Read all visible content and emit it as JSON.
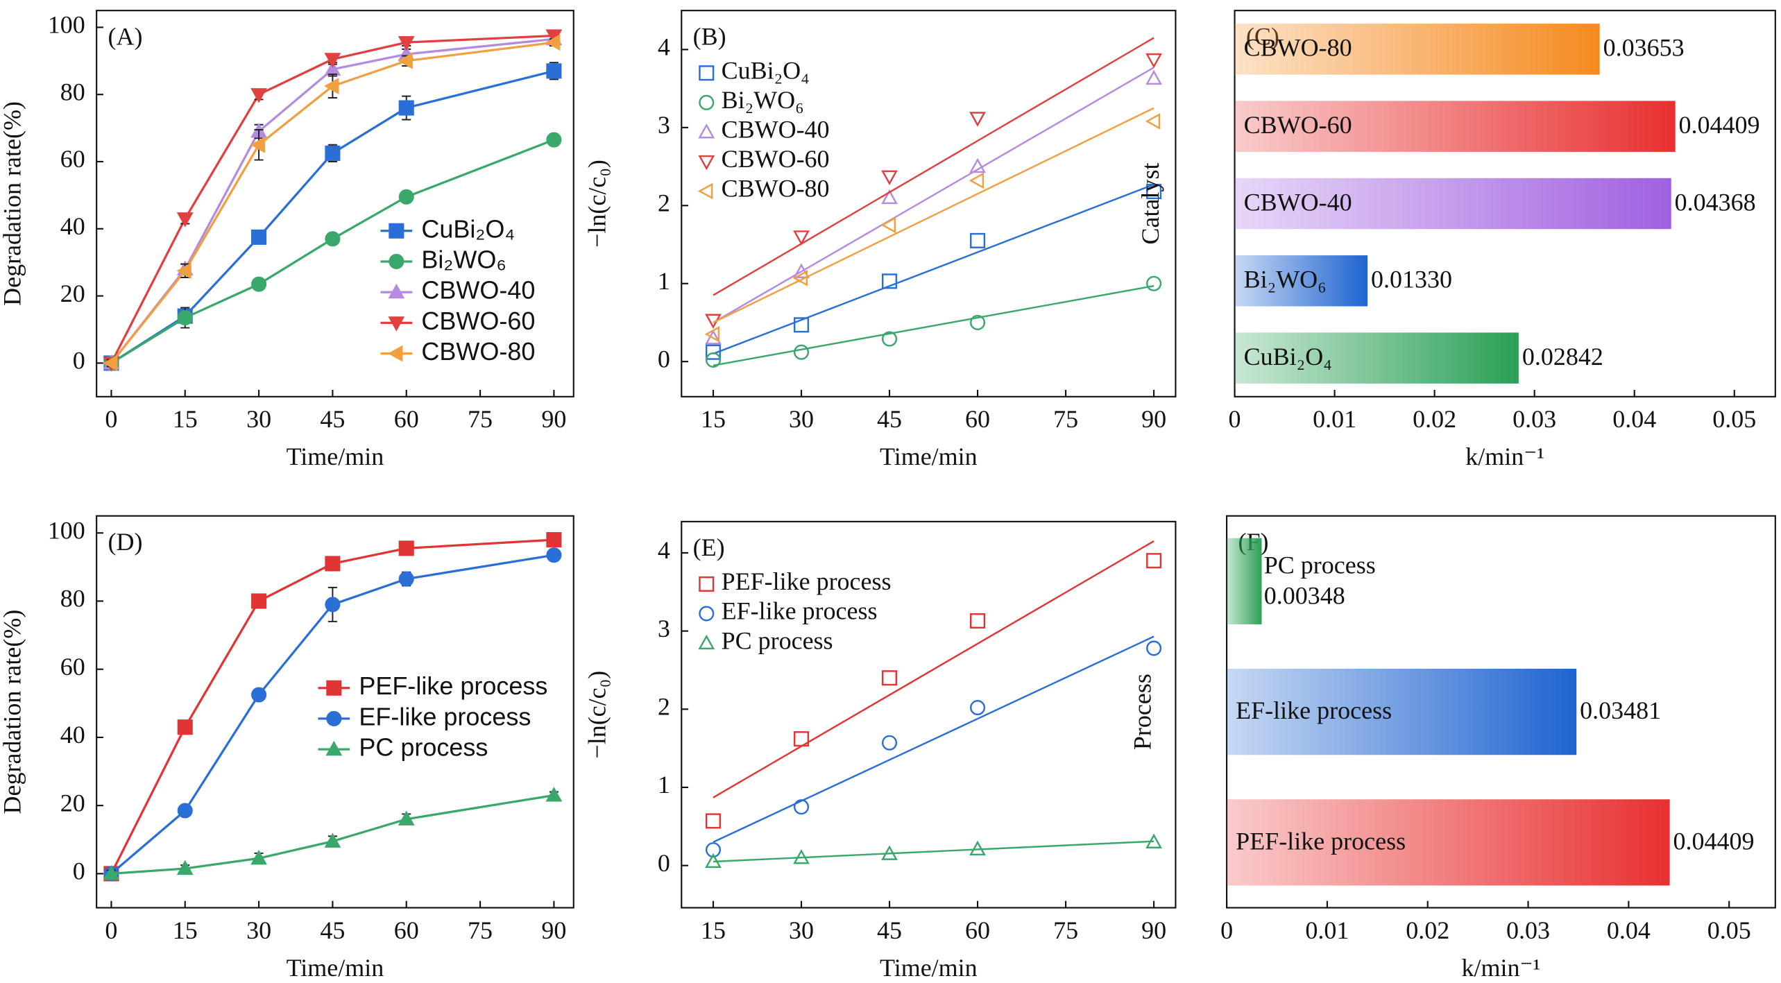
{
  "chart_data": [
    {
      "type": "line",
      "label": "(A)",
      "x_label": "Time/min",
      "y_label": "Degradation rate(%)",
      "legend": "lower right",
      "x": [
        0,
        15,
        30,
        45,
        60,
        90
      ],
      "xlim": [
        -3,
        94
      ],
      "xticks": [
        0,
        15,
        30,
        45,
        60,
        75,
        90
      ],
      "ylim": [
        -10,
        105
      ],
      "yticks": [
        0,
        20,
        40,
        60,
        80,
        100
      ],
      "series": [
        {
          "name": "CuBi₂O₄",
          "color": "#2a6fd6",
          "marker": "square",
          "values": [
            0,
            14,
            37.5,
            62.5,
            76,
            87
          ],
          "errors": [
            1,
            2,
            1.5,
            2.5,
            3.5,
            2.5
          ]
        },
        {
          "name": "Bi₂WO₆",
          "color": "#3aa86b",
          "marker": "circle",
          "values": [
            0,
            13.5,
            23.5,
            37,
            49.5,
            66.5
          ],
          "errors": [
            1,
            3,
            1.5,
            1.5,
            1,
            1
          ]
        },
        {
          "name": "CBWO-40",
          "color": "#b58be0",
          "marker": "up",
          "values": [
            0,
            28,
            69,
            87.5,
            92,
            96.5
          ],
          "errors": [
            1,
            1.5,
            2,
            2,
            1.5,
            1
          ]
        },
        {
          "name": "CBWO-60",
          "color": "#e04040",
          "marker": "down",
          "values": [
            0,
            43,
            80,
            90.5,
            95.5,
            97.5
          ],
          "errors": [
            1,
            1.5,
            1.5,
            1.5,
            1,
            1
          ]
        },
        {
          "name": "CBWO-80",
          "color": "#f0a040",
          "marker": "left",
          "values": [
            0,
            27.5,
            65,
            82.5,
            90,
            95.5
          ],
          "errors": [
            1,
            2,
            4.5,
            3.5,
            1.5,
            1
          ]
        }
      ]
    },
    {
      "type": "scatter",
      "label": "(B)",
      "x_label": "Time/min",
      "y_label": "−ln(c/c₀)",
      "legend": "upper left",
      "x": [
        15,
        30,
        45,
        60,
        90
      ],
      "xlim": [
        9.6,
        93.7
      ],
      "xticks": [
        15,
        30,
        45,
        60,
        75,
        90
      ],
      "ylim": [
        -0.45,
        4.5
      ],
      "yticks": [
        0,
        1,
        2,
        3,
        4
      ],
      "series": [
        {
          "name": "CuBi₂O₄",
          "color": "#2a6fd6",
          "marker": "square",
          "values": [
            0.12,
            0.47,
            1.03,
            1.55,
            2.18
          ],
          "fit": [
            0.1,
            2.27
          ]
        },
        {
          "name": "Bi₂WO₆",
          "color": "#3aa86b",
          "marker": "circle",
          "values": [
            0.02,
            0.12,
            0.29,
            0.5,
            1.0
          ],
          "fit": [
            -0.05,
            0.97
          ]
        },
        {
          "name": "CBWO-40",
          "color": "#b58be0",
          "marker": "up",
          "values": [
            0.3,
            1.15,
            2.1,
            2.5,
            3.63
          ],
          "fit": [
            0.5,
            3.77
          ]
        },
        {
          "name": "CBWO-60",
          "color": "#e04040",
          "marker": "down",
          "values": [
            0.53,
            1.6,
            2.37,
            3.12,
            3.87
          ],
          "fit": [
            0.85,
            4.15
          ]
        },
        {
          "name": "CBWO-80",
          "color": "#f0a040",
          "marker": "left",
          "values": [
            0.35,
            1.07,
            1.75,
            2.32,
            3.08
          ],
          "fit": [
            0.5,
            3.25
          ]
        }
      ]
    },
    {
      "type": "bar",
      "orientation": "horizontal",
      "label": "(C)",
      "x_label": "k/min⁻¹",
      "y_label": "Catalyst",
      "categories": [
        "CuBi₂O₄",
        "Bi₂WO₆",
        "CBWO-40",
        "CBWO-60",
        "CBWO-80"
      ],
      "values": [
        0.02842,
        0.0133,
        0.04368,
        0.04409,
        0.03653
      ],
      "value_labels": [
        "0.02842",
        "0.01330",
        "0.04368",
        "0.04409",
        "0.03653"
      ],
      "colors": [
        "#2aa055",
        "#1f64d0",
        "#a060e0",
        "#e83030",
        "#f58a1f"
      ],
      "xlim": [
        0,
        0.0541
      ],
      "xticks": [
        0,
        0.01,
        0.02,
        0.03,
        0.04,
        0.05
      ]
    },
    {
      "type": "line",
      "label": "(D)",
      "x_label": "Time/min",
      "y_label": "Degradation rate(%)",
      "legend": "center right",
      "x": [
        0,
        15,
        30,
        45,
        60,
        90
      ],
      "xlim": [
        -3,
        94
      ],
      "xticks": [
        0,
        15,
        30,
        45,
        60,
        75,
        90
      ],
      "ylim": [
        -10,
        105
      ],
      "yticks": [
        0,
        20,
        40,
        60,
        80,
        100
      ],
      "series": [
        {
          "name": "PEF-like process",
          "color": "#e03535",
          "marker": "square",
          "values": [
            0,
            43,
            80,
            91,
            95.5,
            98
          ],
          "errors": [
            1,
            1.5,
            1.5,
            1.5,
            1.5,
            1
          ]
        },
        {
          "name": "EF-like process",
          "color": "#2a6fd6",
          "marker": "circle",
          "values": [
            0,
            18.5,
            52.5,
            79,
            86.5,
            93.5
          ],
          "errors": [
            1,
            1,
            1.5,
            5,
            2,
            1
          ]
        },
        {
          "name": "PC process",
          "color": "#3aa86b",
          "marker": "up",
          "values": [
            0,
            1.5,
            4.5,
            9.5,
            16,
            23
          ],
          "errors": [
            1,
            1,
            1.5,
            1.5,
            1.5,
            1
          ]
        }
      ]
    },
    {
      "type": "scatter",
      "label": "(E)",
      "x_label": "Time/min",
      "y_label": "−ln(c/c₀)",
      "legend": "upper left",
      "x": [
        15,
        30,
        45,
        60,
        90
      ],
      "xlim": [
        9.6,
        93.7
      ],
      "xticks": [
        15,
        30,
        45,
        60,
        75,
        90
      ],
      "ylim": [
        -0.54,
        4.4
      ],
      "yticks": [
        0,
        1,
        2,
        3,
        4
      ],
      "series": [
        {
          "name": "PEF-like process",
          "color": "#e03535",
          "marker": "square",
          "values": [
            0.57,
            1.62,
            2.4,
            3.13,
            3.9
          ],
          "fit": [
            0.87,
            4.15
          ]
        },
        {
          "name": "EF-like process",
          "color": "#2a6fd6",
          "marker": "circle",
          "values": [
            0.2,
            0.75,
            1.57,
            2.02,
            2.78
          ],
          "fit": [
            0.3,
            2.93
          ]
        },
        {
          "name": "PC process",
          "color": "#3aa86b",
          "marker": "up",
          "values": [
            0.05,
            0.1,
            0.15,
            0.21,
            0.3
          ],
          "fit": [
            0.05,
            0.31
          ]
        }
      ]
    },
    {
      "type": "bar",
      "orientation": "horizontal",
      "label": "(F)",
      "x_label": "k/min⁻¹",
      "y_label": "Process",
      "categories": [
        "PEF-like process",
        "EF-like process",
        "PC process"
      ],
      "values": [
        0.04409,
        0.03481,
        0.00348
      ],
      "value_labels": [
        "0.04409",
        "0.03481",
        "0.00348"
      ],
      "colors": [
        "#e83030",
        "#1f64d0",
        "#2aa055"
      ],
      "xlim": [
        0,
        0.0546
      ],
      "xticks": [
        0,
        0.01,
        0.02,
        0.03,
        0.04,
        0.05
      ]
    }
  ]
}
